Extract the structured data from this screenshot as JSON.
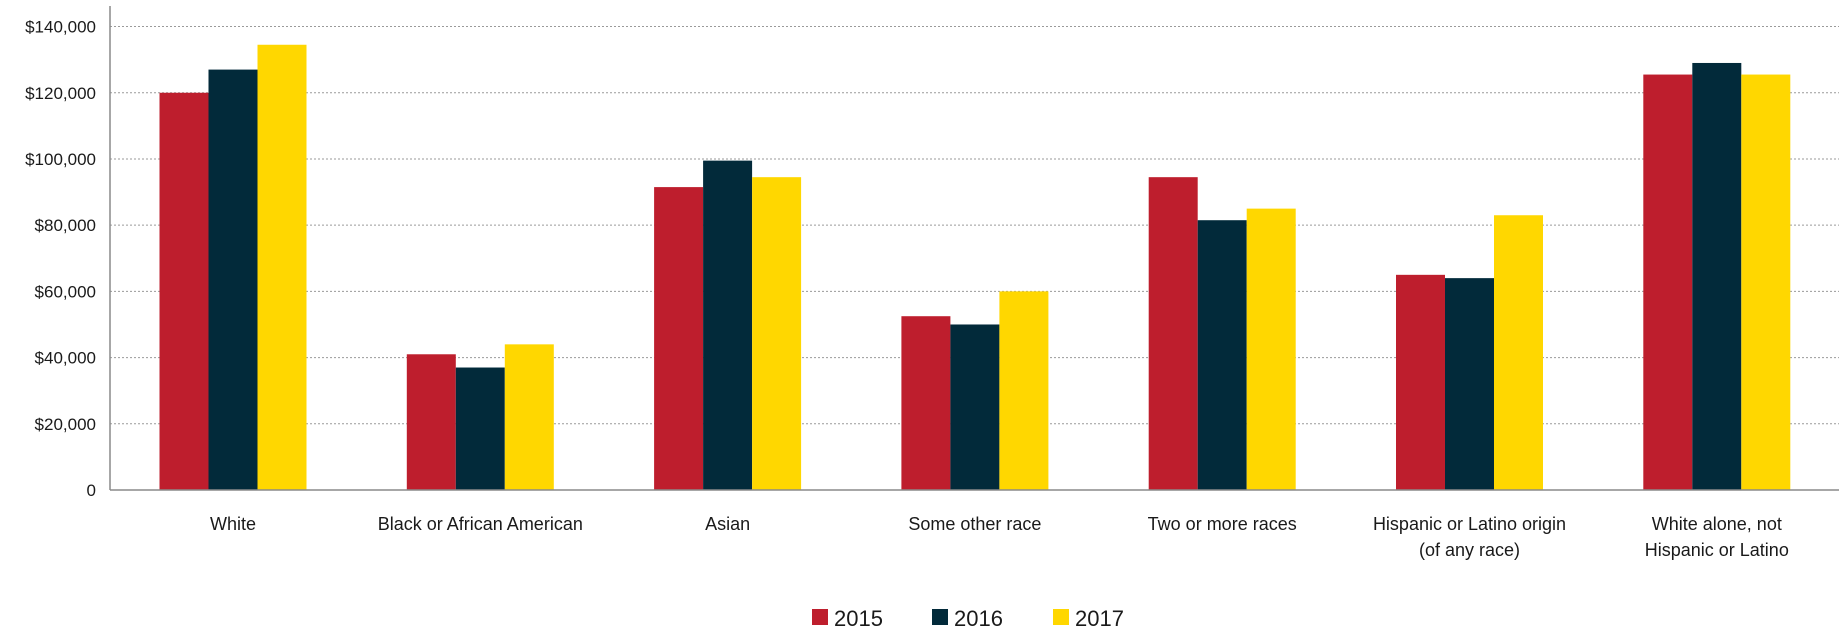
{
  "chart_data": {
    "type": "bar",
    "categories": [
      [
        "White"
      ],
      [
        "Black or African American"
      ],
      [
        "Asian"
      ],
      [
        "Some other race"
      ],
      [
        "Two or more races"
      ],
      [
        "Hispanic or Latino origin",
        "(of any race)"
      ],
      [
        "White alone, not",
        "Hispanic or Latino"
      ]
    ],
    "series": [
      {
        "name": "2015",
        "color": "#be1e2d",
        "values": [
          120000,
          41000,
          91500,
          52500,
          94500,
          65000,
          125500
        ]
      },
      {
        "name": "2016",
        "color": "#022a3a",
        "values": [
          127000,
          37000,
          99500,
          50000,
          81500,
          64000,
          129000
        ]
      },
      {
        "name": "2017",
        "color": "#ffd700",
        "values": [
          134500,
          44000,
          94500,
          60000,
          85000,
          83000,
          125500
        ]
      }
    ],
    "yticks": [
      {
        "value": 0,
        "label": "0"
      },
      {
        "value": 20000,
        "label": "$20,000"
      },
      {
        "value": 40000,
        "label": "$40,000"
      },
      {
        "value": 60000,
        "label": "$60,000"
      },
      {
        "value": 80000,
        "label": "$80,000"
      },
      {
        "value": 100000,
        "label": "$100,000"
      },
      {
        "value": 120000,
        "label": "$120,000"
      },
      {
        "value": 140000,
        "label": "$140,000"
      }
    ],
    "ylim": [
      0,
      145000
    ],
    "grid": true,
    "legend_position": "bottom-center"
  }
}
